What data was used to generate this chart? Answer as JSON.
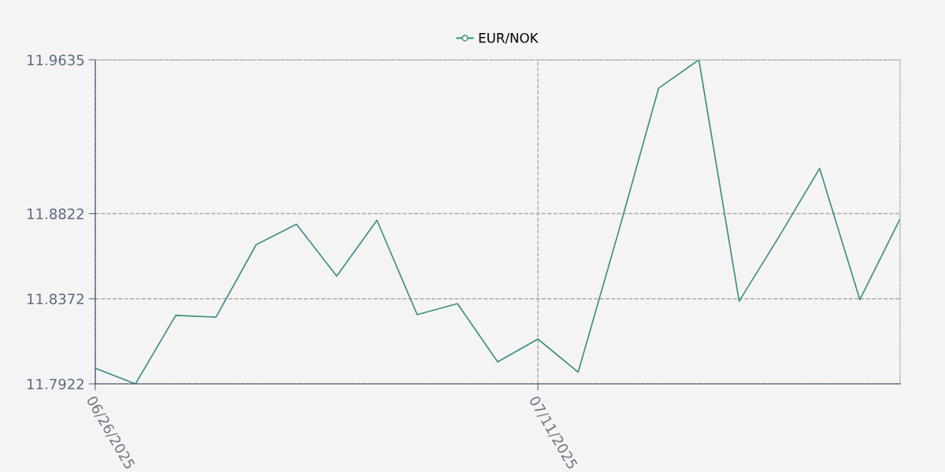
{
  "chart_data": {
    "type": "line",
    "categories": [
      "06/26/2025",
      null,
      null,
      null,
      null,
      null,
      null,
      null,
      null,
      null,
      null,
      "07/11/2025",
      null,
      null,
      null,
      null,
      null,
      null,
      null,
      null,
      null
    ],
    "series": [
      {
        "name": "EUR/NOK",
        "color": "#3d8f80",
        "values": [
          11.8005,
          11.7922,
          11.8284,
          11.8275,
          11.8658,
          11.8766,
          11.8492,
          11.8787,
          11.8288,
          11.8346,
          11.8038,
          11.8159,
          11.7984,
          11.8724,
          11.9485,
          11.9635,
          11.8359,
          11.8703,
          11.9061,
          11.8367,
          11.8795
        ]
      }
    ],
    "ylim": [
      11.7922,
      11.9635
    ],
    "yticks": [
      11.7922,
      11.8372,
      11.8822,
      11.9635
    ],
    "grid": true,
    "legend": "top"
  }
}
